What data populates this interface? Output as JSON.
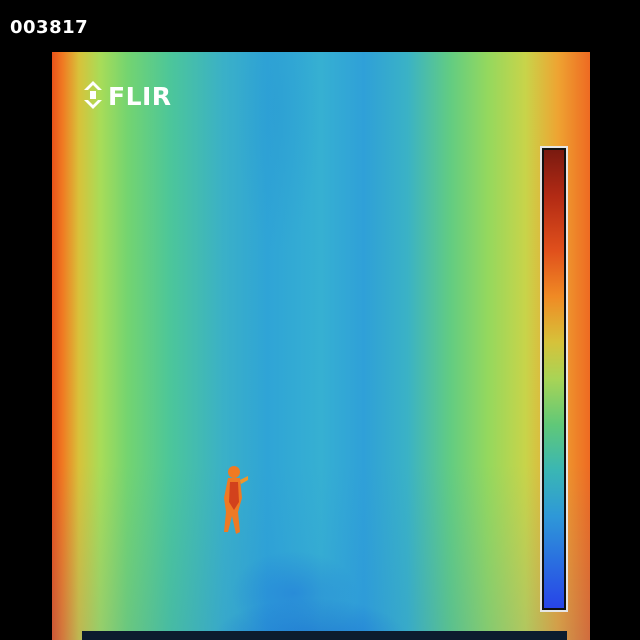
{
  "frame": {
    "counter": "003817"
  },
  "logo": {
    "text": "FLIR"
  },
  "colors": {
    "hot": "#e8521a",
    "cool": "#2fa4d6",
    "scale_top": "#7a1a10",
    "scale_bottom": "#2844e8"
  },
  "icons": {
    "logo_mark": "flir-logo-icon"
  }
}
